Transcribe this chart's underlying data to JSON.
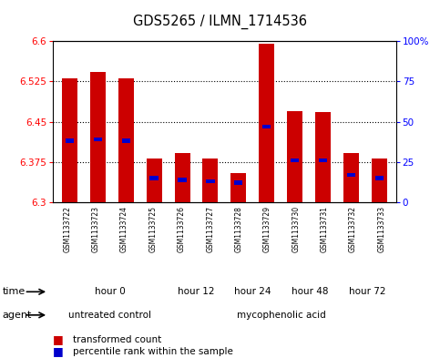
{
  "title": "GDS5265 / ILMN_1714536",
  "samples": [
    "GSM1133722",
    "GSM1133723",
    "GSM1133724",
    "GSM1133725",
    "GSM1133726",
    "GSM1133727",
    "GSM1133728",
    "GSM1133729",
    "GSM1133730",
    "GSM1133731",
    "GSM1133732",
    "GSM1133733"
  ],
  "transformed_counts": [
    6.53,
    6.542,
    6.53,
    6.382,
    6.392,
    6.382,
    6.354,
    6.596,
    6.47,
    6.468,
    6.392,
    6.382
  ],
  "percentile_ranks": [
    38,
    39,
    38,
    15,
    14,
    13,
    12,
    47,
    26,
    26,
    17,
    15
  ],
  "y_min": 6.3,
  "y_max": 6.6,
  "y_ticks": [
    6.3,
    6.375,
    6.45,
    6.525,
    6.6
  ],
  "y_tick_labels": [
    "6.3",
    "6.375",
    "6.45",
    "6.525",
    "6.6"
  ],
  "right_y_ticks": [
    0,
    25,
    50,
    75,
    100
  ],
  "right_y_labels": [
    "0",
    "25",
    "50",
    "75",
    "100%"
  ],
  "bar_color": "#cc0000",
  "blue_color": "#0000cc",
  "bar_width": 0.55,
  "time_groups": [
    {
      "label": "hour 0",
      "start": 0,
      "end": 4,
      "color": "#ccffcc"
    },
    {
      "label": "hour 12",
      "start": 4,
      "end": 6,
      "color": "#99ee99"
    },
    {
      "label": "hour 24",
      "start": 6,
      "end": 8,
      "color": "#66cc66"
    },
    {
      "label": "hour 48",
      "start": 8,
      "end": 10,
      "color": "#44bb44"
    },
    {
      "label": "hour 72",
      "start": 10,
      "end": 12,
      "color": "#22aa22"
    }
  ],
  "agent_groups": [
    {
      "label": "untreated control",
      "start": 0,
      "end": 4,
      "color": "#ffaaff"
    },
    {
      "label": "mycophenolic acid",
      "start": 4,
      "end": 12,
      "color": "#ffaaff"
    }
  ],
  "n_samples": 12
}
